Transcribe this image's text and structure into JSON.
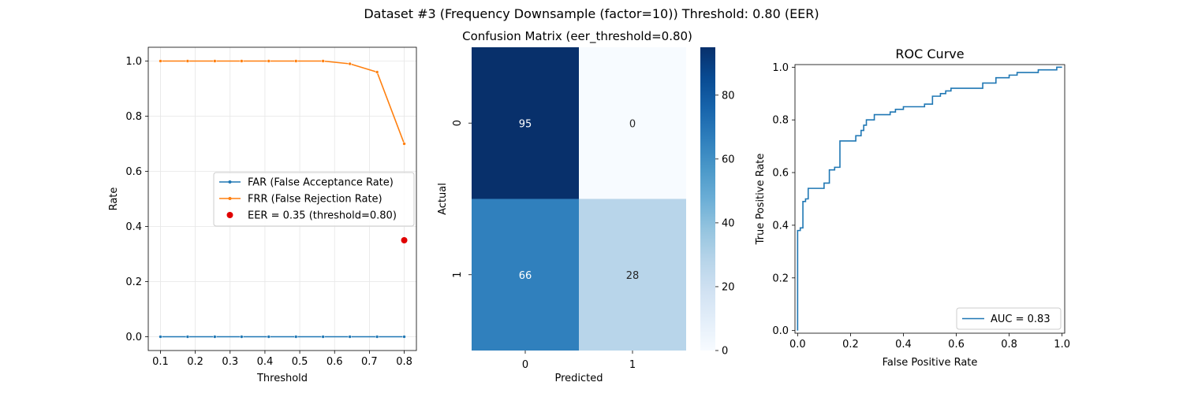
{
  "figure": {
    "suptitle": "Dataset #3 (Frequency Downsample (factor=10))    Threshold: 0.80 (EER)"
  },
  "chart_data": [
    {
      "type": "line",
      "xlabel": "Threshold",
      "ylabel": "Rate",
      "xlim": [
        0.065,
        0.835
      ],
      "ylim": [
        -0.05,
        1.05
      ],
      "xticks": [
        "0.1",
        "0.2",
        "0.3",
        "0.4",
        "0.5",
        "0.6",
        "0.7",
        "0.8"
      ],
      "yticks": [
        "0.0",
        "0.2",
        "0.4",
        "0.6",
        "0.8",
        "1.0"
      ],
      "grid": true,
      "legend_position": "center-right",
      "x": [
        0.1,
        0.178,
        0.256,
        0.333,
        0.411,
        0.489,
        0.567,
        0.644,
        0.722,
        0.8
      ],
      "series": [
        {
          "name": "FAR (False Acceptance Rate)",
          "color": "#1f77b4",
          "values": [
            0,
            0,
            0,
            0,
            0,
            0,
            0,
            0,
            0,
            0
          ]
        },
        {
          "name": "FRR (False Rejection Rate)",
          "color": "#ff7f0e",
          "values": [
            1.0,
            1.0,
            1.0,
            1.0,
            1.0,
            1.0,
            1.0,
            0.99,
            0.96,
            0.7
          ]
        }
      ],
      "eer_point": {
        "label": "EER = 0.35 (threshold=0.80)",
        "x": 0.8,
        "y": 0.35,
        "color": "#e00000"
      }
    },
    {
      "type": "heatmap",
      "title": "Confusion Matrix (eer_threshold=0.80)",
      "xlabel": "Predicted",
      "ylabel": "Actual",
      "x_categories": [
        "0",
        "1"
      ],
      "y_categories": [
        "0",
        "1"
      ],
      "values": [
        [
          95,
          0
        ],
        [
          66,
          28
        ]
      ],
      "colormap": "Blues",
      "vmin": 0,
      "vmax": 95,
      "colorbar_ticks": [
        "0",
        "20",
        "40",
        "60",
        "80"
      ]
    },
    {
      "type": "line",
      "title": "ROC Curve",
      "xlabel": "False Positive Rate",
      "ylabel": "True Positive Rate",
      "xlim": [
        -0.01,
        1.01
      ],
      "ylim": [
        -0.01,
        1.01
      ],
      "xticks": [
        "0.0",
        "0.2",
        "0.4",
        "0.6",
        "0.8",
        "1.0"
      ],
      "yticks": [
        "0.0",
        "0.2",
        "0.4",
        "0.6",
        "0.8",
        "1.0"
      ],
      "grid": false,
      "legend_position": "lower-right",
      "series": [
        {
          "name": "AUC = 0.83",
          "color": "#1f77b4",
          "points": [
            [
              0,
              0
            ],
            [
              0,
              0.38
            ],
            [
              0.01,
              0.38
            ],
            [
              0.01,
              0.39
            ],
            [
              0.02,
              0.39
            ],
            [
              0.02,
              0.49
            ],
            [
              0.03,
              0.49
            ],
            [
              0.03,
              0.5
            ],
            [
              0.04,
              0.5
            ],
            [
              0.04,
              0.54
            ],
            [
              0.1,
              0.54
            ],
            [
              0.1,
              0.56
            ],
            [
              0.12,
              0.56
            ],
            [
              0.12,
              0.61
            ],
            [
              0.14,
              0.61
            ],
            [
              0.14,
              0.62
            ],
            [
              0.16,
              0.62
            ],
            [
              0.16,
              0.72
            ],
            [
              0.22,
              0.72
            ],
            [
              0.22,
              0.74
            ],
            [
              0.24,
              0.74
            ],
            [
              0.24,
              0.76
            ],
            [
              0.25,
              0.76
            ],
            [
              0.25,
              0.78
            ],
            [
              0.26,
              0.78
            ],
            [
              0.26,
              0.8
            ],
            [
              0.29,
              0.8
            ],
            [
              0.29,
              0.82
            ],
            [
              0.35,
              0.82
            ],
            [
              0.35,
              0.83
            ],
            [
              0.37,
              0.83
            ],
            [
              0.37,
              0.84
            ],
            [
              0.4,
              0.84
            ],
            [
              0.4,
              0.85
            ],
            [
              0.48,
              0.85
            ],
            [
              0.48,
              0.86
            ],
            [
              0.51,
              0.86
            ],
            [
              0.51,
              0.89
            ],
            [
              0.54,
              0.89
            ],
            [
              0.54,
              0.9
            ],
            [
              0.56,
              0.9
            ],
            [
              0.56,
              0.91
            ],
            [
              0.58,
              0.91
            ],
            [
              0.58,
              0.92
            ],
            [
              0.7,
              0.92
            ],
            [
              0.7,
              0.94
            ],
            [
              0.75,
              0.94
            ],
            [
              0.75,
              0.96
            ],
            [
              0.8,
              0.96
            ],
            [
              0.8,
              0.97
            ],
            [
              0.83,
              0.97
            ],
            [
              0.83,
              0.98
            ],
            [
              0.91,
              0.98
            ],
            [
              0.91,
              0.99
            ],
            [
              0.98,
              0.99
            ],
            [
              0.98,
              1.0
            ],
            [
              1.0,
              1.0
            ]
          ]
        }
      ]
    }
  ]
}
